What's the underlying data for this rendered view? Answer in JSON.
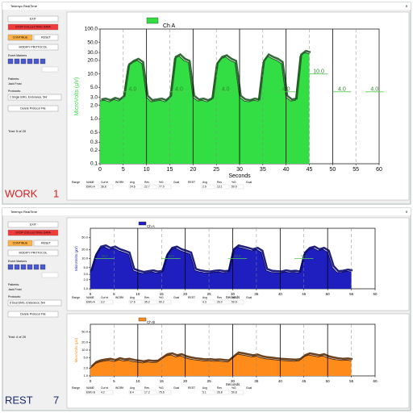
{
  "windows": [
    {
      "title": "Telemyo RealTime",
      "buttons": [
        {
          "label": "EXIT",
          "color": "#ffffff"
        },
        {
          "label": "STOP COLLECTING DATA",
          "color": "#f03a3a"
        },
        {
          "label": "CONTINUE",
          "color": "#ffb347"
        },
        {
          "label": "RESET",
          "color": "#ffffff"
        },
        {
          "label": "MODIFY PROTOCOL",
          "color": "#ffffff"
        },
        {
          "label": "Delete Protocol File",
          "color": "#ffffff"
        }
      ],
      "event_markers": "Event Markers",
      "patient_label": "Patients:",
      "patient": "Jack Frost",
      "protocol_label": "Protocols:",
      "protocol": "2 Single EMG, Endurance, 5Hr",
      "trial": "Trial: 5 of 20",
      "phase": "WORK",
      "phase_number": "1",
      "phase_color": "#d62020",
      "charts": [
        {
          "type": "area",
          "legend": "Ch A",
          "color": "#33dd44",
          "edge": "#1e5a22",
          "xlabel": "Seconds",
          "ylabel": "MicroVolts (µV)",
          "log": true,
          "x": [
            0,
            1,
            2,
            3,
            4,
            5,
            6,
            7,
            8,
            9,
            10,
            11,
            12,
            13,
            14,
            15,
            16,
            17,
            18,
            19,
            20,
            21,
            22,
            23,
            24,
            25,
            26,
            27,
            28,
            29,
            30,
            31,
            32,
            33,
            34,
            35,
            36,
            37,
            38,
            39,
            40,
            41,
            42,
            43,
            44,
            45
          ],
          "values": [
            2.5,
            2.6,
            2.4,
            2.7,
            2.5,
            3,
            15,
            18,
            20,
            17,
            3,
            2.4,
            2.5,
            2.6,
            2.4,
            3,
            22,
            25,
            20,
            18,
            3,
            2.5,
            2.6,
            2.4,
            2.7,
            16,
            22,
            24,
            20,
            18,
            3,
            2.5,
            2.4,
            2.6,
            2.5,
            18,
            25,
            22,
            20,
            17,
            3,
            2.5,
            2.6,
            25,
            30,
            28
          ],
          "xlim": [
            0,
            60
          ],
          "xticks": [
            0,
            5,
            10,
            15,
            20,
            25,
            30,
            35,
            40,
            45,
            50,
            55,
            60
          ],
          "ylim": [
            0.1,
            100
          ],
          "yticks": [
            0.1,
            0.2,
            0.3,
            0.5,
            {
              "value": 1,
              "label": "1.0"
            },
            {
              "value": 2,
              "label": "2.0"
            },
            {
              "value": 3,
              "label": "3.0"
            },
            {
              "value": 5,
              "label": "5.0"
            },
            {
              "value": 10,
              "label": "10.0"
            },
            {
              "value": 20,
              "label": "20.0"
            },
            {
              "value": 30,
              "label": "30.0"
            },
            {
              "value": 50,
              "label": "50.0"
            },
            {
              "value": 100,
              "label": "100.0"
            }
          ],
          "annotations": [
            "4.0",
            "4.0",
            "4.0",
            "4.0",
            "10.0",
            "4.0",
            "4.0"
          ],
          "stats_headers": [
            "Range",
            "NAME",
            "Cur'nt",
            "WORK",
            "Avg",
            "Rev",
            "%G",
            "Goal",
            "REST",
            "Avg",
            "Rev",
            "%G",
            "Goal"
          ],
          "stats_values": [
            "EMG A",
            "36.8",
            "24.6",
            "22.7",
            "77.0",
            "2.9",
            "13.1",
            "50.9"
          ]
        }
      ]
    },
    {
      "title": "Telemyo RealTime",
      "buttons": [
        {
          "label": "EXIT",
          "color": "#ffffff"
        },
        {
          "label": "STOP COLLECTING DATA",
          "color": "#f03a3a"
        },
        {
          "label": "CONTINUE",
          "color": "#ffb347"
        },
        {
          "label": "RESET",
          "color": "#ffffff"
        },
        {
          "label": "MODIFY PROTOCOL",
          "color": "#ffffff"
        },
        {
          "label": "Delete Protocol File",
          "color": "#ffffff"
        }
      ],
      "event_markers": "Event Markers",
      "patient_label": "Patients:",
      "patient": "Jack Frost",
      "protocol_label": "Protocols:",
      "protocol": "8 Dual EMG, Endurance, 5Hr",
      "trial": "Trial: 4 of 20",
      "phase": "REST",
      "phase_number": "7",
      "phase_color": "#1a2a6a",
      "charts": [
        {
          "type": "area",
          "legend": "Ch A",
          "color": "#1f1fc0",
          "edge": "#0a0a70",
          "xlabel": "Seconds",
          "ylabel": "MicroVolts (µV)",
          "log": true,
          "x": [
            0,
            1,
            2,
            3,
            4,
            5,
            6,
            7,
            8,
            9,
            10,
            11,
            12,
            13,
            14,
            15,
            16,
            17,
            18,
            19,
            20,
            21,
            22,
            23,
            24,
            25,
            26,
            27,
            28,
            29,
            30,
            31,
            32,
            33,
            34,
            35,
            36,
            37,
            38,
            39,
            40,
            41,
            42,
            43,
            44,
            45,
            46,
            47,
            48,
            49,
            50,
            51,
            52,
            53,
            54,
            55
          ],
          "values": [
            3.5,
            12,
            22,
            24,
            20,
            22,
            18,
            16,
            14,
            4,
            3.5,
            3.2,
            3.4,
            3.6,
            3.3,
            3.5,
            12,
            20,
            22,
            18,
            16,
            14,
            4,
            3.6,
            3.4,
            3.3,
            3.5,
            3.6,
            3.4,
            3.5,
            18,
            24,
            22,
            20,
            18,
            20,
            16,
            4,
            3.5,
            3.4,
            3.3,
            3.6,
            3.4,
            3.5,
            3.3,
            14,
            20,
            22,
            18,
            20,
            16,
            5,
            3.4,
            3.5,
            3.8,
            3.6
          ],
          "xlim": [
            0,
            60
          ],
          "xticks": [
            0,
            5,
            10,
            15,
            20,
            25,
            30,
            35,
            40,
            45,
            50,
            55,
            60
          ],
          "ylim": [
            1,
            100
          ],
          "yticks": [
            {
              "value": 1,
              "label": "1.0"
            },
            {
              "value": 2,
              "label": "2.0"
            },
            {
              "value": 3,
              "label": "3.0"
            },
            {
              "value": 5,
              "label": "5.0"
            },
            {
              "value": 10,
              "label": "10.0"
            },
            {
              "value": 20,
              "label": "20.0"
            },
            {
              "value": 50,
              "label": "50.0"
            }
          ],
          "annotations": [
            "10.0",
            "10.0",
            "10.0",
            "10.0"
          ],
          "stats_headers": [
            "Range",
            "NAME",
            "Cur'nt",
            "WORK",
            "Avg",
            "Rev",
            "%G",
            "Goal",
            "REST",
            "Avg",
            "Rev",
            "%G",
            "Goal"
          ],
          "stats_values": [
            "EMG A",
            "3.2",
            "17.6",
            "35.2",
            "90.2",
            "4.3",
            "26.0",
            "50.6"
          ]
        },
        {
          "type": "area",
          "legend": "Ch B",
          "color": "#ff8c1a",
          "edge": "#5a2e08",
          "xlabel": "Seconds",
          "ylabel": "MicroVolts (µV)",
          "log": true,
          "x": [
            0,
            1,
            2,
            3,
            4,
            5,
            6,
            7,
            8,
            9,
            10,
            11,
            12,
            13,
            14,
            15,
            16,
            17,
            18,
            19,
            20,
            21,
            22,
            23,
            24,
            25,
            26,
            27,
            28,
            29,
            30,
            31,
            32,
            33,
            34,
            35,
            36,
            37,
            38,
            39,
            40,
            41,
            42,
            43,
            44,
            45,
            46,
            47,
            48,
            49,
            50,
            51,
            52,
            53,
            54,
            55
          ],
          "values": [
            2,
            3,
            3.5,
            3.8,
            4,
            3.6,
            4.2,
            3.8,
            4,
            3.6,
            3.4,
            3.2,
            3.5,
            3.3,
            3.4,
            4.5,
            6,
            6.5,
            5.5,
            6,
            5,
            4.5,
            4.2,
            4,
            3.8,
            3.9,
            3.7,
            3.8,
            3.6,
            3.5,
            5,
            7,
            6.5,
            6,
            5.5,
            5.8,
            5,
            4.6,
            4.4,
            4.2,
            4,
            3.9,
            3.8,
            3.7,
            3.9,
            5.5,
            6.5,
            6,
            5.5,
            6,
            5,
            4.5,
            4.2,
            4,
            4.1,
            3.9
          ],
          "xlim": [
            0,
            60
          ],
          "xticks": [
            0,
            5,
            10,
            15,
            20,
            25,
            30,
            35,
            40,
            45,
            50,
            55,
            60
          ],
          "ylim": [
            1,
            100
          ],
          "yticks": [
            {
              "value": 1,
              "label": "1.0"
            },
            {
              "value": 2,
              "label": "2.0"
            },
            {
              "value": 5,
              "label": "5.0"
            },
            {
              "value": 10,
              "label": "10.0"
            },
            {
              "value": 20,
              "label": "20.0"
            },
            {
              "value": 50,
              "label": "50.0"
            }
          ],
          "stats_headers": [
            "Range",
            "NAME",
            "Cur'nt",
            "WORK",
            "Avg",
            "Rev",
            "%G",
            "Goal",
            "REST",
            "Avg",
            "Rev",
            "%G",
            "Goal"
          ],
          "stats_values": [
            "EMG B",
            "4.2",
            "8.4",
            "17.2",
            "75.6",
            "5.1",
            "26.8",
            "50.8"
          ]
        }
      ]
    }
  ]
}
